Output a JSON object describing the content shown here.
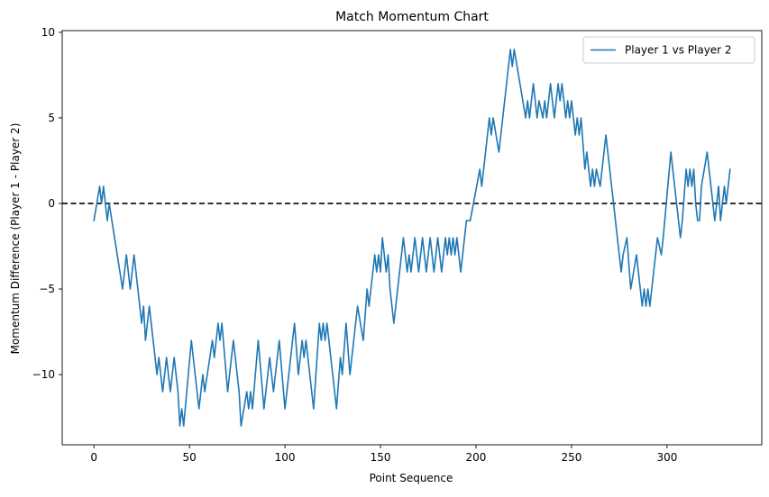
{
  "chart_data": {
    "type": "line",
    "title": "Match Momentum Chart",
    "xlabel": "Point Sequence",
    "ylabel": "Momentum Difference (Player 1 - Player 2)",
    "xlim": [
      -16.6,
      349.6
    ],
    "ylim": [
      -14.1,
      10.1
    ],
    "xticks": [
      0,
      50,
      100,
      150,
      200,
      250,
      300
    ],
    "yticks": [
      -10,
      -5,
      0,
      5,
      10
    ],
    "ytick_labels": [
      "−10",
      "−5",
      "0",
      "5",
      "10"
    ],
    "grid": false,
    "legend_position": "upper right",
    "reference_line": {
      "y": 0,
      "style": "dashed",
      "color": "#000000"
    },
    "colors": {
      "series": "#1f77b4",
      "axes": "#000000"
    },
    "series": [
      {
        "name": "Player 1 vs Player 2",
        "keypoints": [
          [
            0,
            -1
          ],
          [
            3,
            1
          ],
          [
            4,
            0
          ],
          [
            5,
            1
          ],
          [
            7,
            -1
          ],
          [
            8,
            0
          ],
          [
            15,
            -5
          ],
          [
            17,
            -3
          ],
          [
            19,
            -5
          ],
          [
            21,
            -3
          ],
          [
            25,
            -7
          ],
          [
            26,
            -6
          ],
          [
            27,
            -8
          ],
          [
            29,
            -6
          ],
          [
            33,
            -10
          ],
          [
            34,
            -9
          ],
          [
            36,
            -11
          ],
          [
            37,
            -10
          ],
          [
            38,
            -9
          ],
          [
            40,
            -11
          ],
          [
            42,
            -9
          ],
          [
            44,
            -11
          ],
          [
            45,
            -13
          ],
          [
            46,
            -12
          ],
          [
            47,
            -13
          ],
          [
            51,
            -8
          ],
          [
            55,
            -12
          ],
          [
            57,
            -10
          ],
          [
            58,
            -11
          ],
          [
            62,
            -8
          ],
          [
            63,
            -9
          ],
          [
            65,
            -7
          ],
          [
            66,
            -8
          ],
          [
            67,
            -7
          ],
          [
            70,
            -11
          ],
          [
            73,
            -8
          ],
          [
            74,
            -9
          ],
          [
            76,
            -11
          ],
          [
            77,
            -13
          ],
          [
            80,
            -11
          ],
          [
            81,
            -12
          ],
          [
            82,
            -11
          ],
          [
            83,
            -12
          ],
          [
            86,
            -8
          ],
          [
            89,
            -12
          ],
          [
            91,
            -10
          ],
          [
            92,
            -9
          ],
          [
            94,
            -11
          ],
          [
            97,
            -8
          ],
          [
            100,
            -12
          ],
          [
            105,
            -7
          ],
          [
            107,
            -10
          ],
          [
            109,
            -8
          ],
          [
            110,
            -9
          ],
          [
            111,
            -8
          ],
          [
            115,
            -12
          ],
          [
            118,
            -7
          ],
          [
            119,
            -8
          ],
          [
            120,
            -7
          ],
          [
            121,
            -8
          ],
          [
            122,
            -7
          ],
          [
            127,
            -12
          ],
          [
            129,
            -9
          ],
          [
            130,
            -10
          ],
          [
            132,
            -7
          ],
          [
            134,
            -10
          ],
          [
            138,
            -6
          ],
          [
            141,
            -8
          ],
          [
            143,
            -5
          ],
          [
            144,
            -6
          ],
          [
            147,
            -3
          ],
          [
            148,
            -4
          ],
          [
            149,
            -3
          ],
          [
            150,
            -4
          ],
          [
            151,
            -2
          ],
          [
            153,
            -4
          ],
          [
            154,
            -3
          ],
          [
            155,
            -5
          ],
          [
            157,
            -7
          ],
          [
            162,
            -2
          ],
          [
            164,
            -4
          ],
          [
            165,
            -3
          ],
          [
            166,
            -4
          ],
          [
            168,
            -2
          ],
          [
            170,
            -4
          ],
          [
            171,
            -3
          ],
          [
            172,
            -2
          ],
          [
            174,
            -4
          ],
          [
            176,
            -2
          ],
          [
            177,
            -3
          ],
          [
            178,
            -4
          ],
          [
            180,
            -2
          ],
          [
            182,
            -4
          ],
          [
            184,
            -2
          ],
          [
            185,
            -3
          ],
          [
            186,
            -2
          ],
          [
            187,
            -3
          ],
          [
            188,
            -2
          ],
          [
            189,
            -3
          ],
          [
            190,
            -2
          ],
          [
            191,
            -3
          ],
          [
            192,
            -4
          ],
          [
            195,
            -1
          ],
          [
            197,
            -1
          ],
          [
            202,
            2
          ],
          [
            203,
            1
          ],
          [
            207,
            5
          ],
          [
            208,
            4
          ],
          [
            209,
            5
          ],
          [
            212,
            3
          ],
          [
            218,
            9
          ],
          [
            219,
            8
          ],
          [
            220,
            9
          ],
          [
            226,
            5
          ],
          [
            227,
            6
          ],
          [
            228,
            5
          ],
          [
            230,
            7
          ],
          [
            232,
            5
          ],
          [
            233,
            6
          ],
          [
            235,
            5
          ],
          [
            236,
            6
          ],
          [
            237,
            5
          ],
          [
            239,
            7
          ],
          [
            241,
            5
          ],
          [
            243,
            7
          ],
          [
            244,
            6
          ],
          [
            245,
            7
          ],
          [
            247,
            5
          ],
          [
            248,
            6
          ],
          [
            249,
            5
          ],
          [
            250,
            6
          ],
          [
            252,
            4
          ],
          [
            253,
            5
          ],
          [
            254,
            4
          ],
          [
            255,
            5
          ],
          [
            257,
            2
          ],
          [
            258,
            3
          ],
          [
            260,
            1
          ],
          [
            261,
            2
          ],
          [
            262,
            1
          ],
          [
            263,
            2
          ],
          [
            265,
            1
          ],
          [
            266,
            2
          ],
          [
            268,
            4
          ],
          [
            276,
            -4
          ],
          [
            277,
            -3
          ],
          [
            279,
            -2
          ],
          [
            281,
            -5
          ],
          [
            284,
            -3
          ],
          [
            285,
            -4
          ],
          [
            287,
            -6
          ],
          [
            288,
            -5
          ],
          [
            289,
            -6
          ],
          [
            290,
            -5
          ],
          [
            291,
            -6
          ],
          [
            294,
            -3
          ],
          [
            295,
            -2
          ],
          [
            297,
            -3
          ],
          [
            298,
            -2
          ],
          [
            302,
            3
          ],
          [
            307,
            -2
          ],
          [
            308,
            -1
          ],
          [
            310,
            2
          ],
          [
            311,
            1
          ],
          [
            312,
            2
          ],
          [
            313,
            1
          ],
          [
            314,
            2
          ],
          [
            315,
            0
          ],
          [
            316,
            -1
          ],
          [
            317,
            -1
          ],
          [
            318,
            1
          ],
          [
            321,
            3
          ],
          [
            325,
            -1
          ],
          [
            327,
            1
          ],
          [
            328,
            -1
          ],
          [
            330,
            1
          ],
          [
            331,
            0
          ],
          [
            333,
            2
          ]
        ]
      }
    ]
  }
}
